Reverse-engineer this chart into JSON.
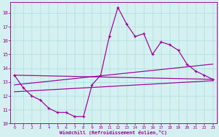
{
  "hours": [
    0,
    1,
    2,
    3,
    4,
    5,
    6,
    7,
    8,
    9,
    10,
    11,
    12,
    13,
    14,
    15,
    16,
    17,
    18,
    19,
    20,
    21,
    22,
    23
  ],
  "windchill": [
    13.5,
    12.6,
    12.0,
    11.7,
    11.1,
    10.8,
    10.8,
    10.5,
    10.5,
    12.8,
    13.5,
    16.3,
    18.4,
    17.2,
    16.3,
    16.5,
    15.0,
    15.9,
    15.7,
    15.3,
    14.3,
    13.8,
    13.5,
    13.2
  ],
  "trend1_x": [
    0,
    23
  ],
  "trend1_y": [
    13.5,
    13.2
  ],
  "trend2_x": [
    0,
    23
  ],
  "trend2_y": [
    12.8,
    14.3
  ],
  "trend3_x": [
    0,
    23
  ],
  "trend3_y": [
    12.3,
    13.1
  ],
  "color": "#990099",
  "bg_color": "#d5f0f0",
  "grid_color": "#aadddd",
  "xlabel": "Windchill (Refroidissement éolien,°C)",
  "xlim": [
    -0.5,
    23.5
  ],
  "ylim": [
    10,
    18.8
  ],
  "yticks": [
    10,
    11,
    12,
    13,
    14,
    15,
    16,
    17,
    18
  ],
  "xticks": [
    0,
    1,
    2,
    3,
    4,
    5,
    6,
    7,
    8,
    9,
    10,
    11,
    12,
    13,
    14,
    15,
    16,
    17,
    18,
    19,
    20,
    21,
    22,
    23
  ]
}
